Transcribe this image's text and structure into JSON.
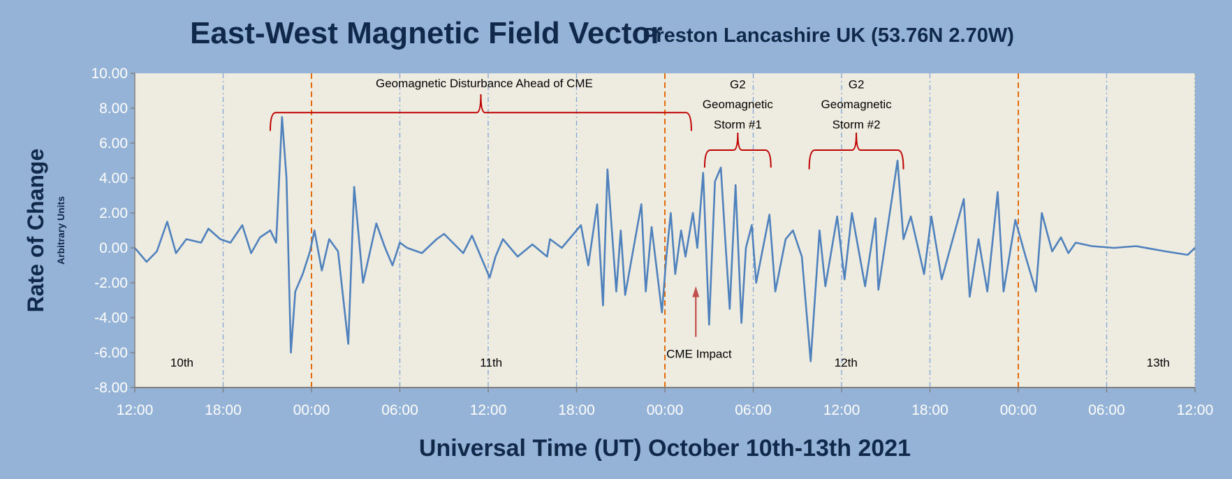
{
  "chart_data": {
    "type": "line",
    "title": "East-West Magnetic Field Vector",
    "subtitle": "Preston Lancashire UK (53.76N 2.70W)",
    "xlabel": "Universal Time (UT) October 10th-13th 2021",
    "ylabel": "Rate of Change",
    "ylabel_sub": "Arbitrary Units",
    "ylim": [
      -8,
      10
    ],
    "xlim_hours": [
      0,
      72
    ],
    "yticks": [
      "10.00",
      "8.00",
      "6.00",
      "4.00",
      "2.00",
      "0.00",
      "-2.00",
      "-4.00",
      "-6.00",
      "-8.00"
    ],
    "ytick_values": [
      10,
      8,
      6,
      4,
      2,
      0,
      -2,
      -4,
      -6,
      -8
    ],
    "xticks": [
      "12:00",
      "18:00",
      "00:00",
      "06:00",
      "12:00",
      "18:00",
      "00:00",
      "06:00",
      "12:00",
      "18:00",
      "00:00",
      "06:00",
      "12:00"
    ],
    "midnight_hours": [
      12,
      36,
      60
    ],
    "day_labels": [
      {
        "text": "10th",
        "hour": 3.2
      },
      {
        "text": "11th",
        "hour": 24.2
      },
      {
        "text": "12th",
        "hour": 48.3
      },
      {
        "text": "13th",
        "hour": 69.5
      }
    ],
    "annotations": {
      "disturbance": "Geomagnetic Disturbance Ahead of CME",
      "storm1": [
        "G2",
        "Geomagnetic",
        "Storm #1"
      ],
      "storm2": [
        "G2",
        "Geomagnetic",
        "Storm #2"
      ],
      "cme": "CME Impact"
    },
    "series": [
      {
        "name": "East-West rate of change",
        "color": "#4F81BD",
        "points": [
          [
            0,
            0
          ],
          [
            0.8,
            -0.8
          ],
          [
            1.5,
            -0.2
          ],
          [
            2.2,
            1.5
          ],
          [
            2.8,
            -0.3
          ],
          [
            3.5,
            0.5
          ],
          [
            4.5,
            0.3
          ],
          [
            5.0,
            1.1
          ],
          [
            5.8,
            0.5
          ],
          [
            6.5,
            0.3
          ],
          [
            7.3,
            1.3
          ],
          [
            7.9,
            -0.3
          ],
          [
            8.5,
            0.6
          ],
          [
            9.2,
            1.0
          ],
          [
            9.6,
            0.3
          ],
          [
            10.0,
            7.5
          ],
          [
            10.3,
            4
          ],
          [
            10.6,
            -6.0
          ],
          [
            10.9,
            -2.5
          ],
          [
            11.4,
            -1.5
          ],
          [
            11.9,
            -0.2
          ],
          [
            12.2,
            1.0
          ],
          [
            12.7,
            -1.3
          ],
          [
            13.2,
            0.5
          ],
          [
            13.8,
            -0.2
          ],
          [
            14.5,
            -5.5
          ],
          [
            14.9,
            3.5
          ],
          [
            15.5,
            -2.0
          ],
          [
            16.4,
            1.4
          ],
          [
            17.0,
            0
          ],
          [
            17.5,
            -1.0
          ],
          [
            18.0,
            0.3
          ],
          [
            18.5,
            0
          ],
          [
            19.5,
            -0.3
          ],
          [
            20.5,
            0.5
          ],
          [
            21.0,
            0.8
          ],
          [
            22.3,
            -0.3
          ],
          [
            22.9,
            0.7
          ],
          [
            24.1,
            -1.7
          ],
          [
            24.5,
            -0.5
          ],
          [
            25.0,
            0.5
          ],
          [
            26.0,
            -0.5
          ],
          [
            27.0,
            0.2
          ],
          [
            28.0,
            -0.5
          ],
          [
            28.2,
            0.5
          ],
          [
            29.0,
            0
          ],
          [
            30.3,
            1.3
          ],
          [
            30.8,
            -1.0
          ],
          [
            31.4,
            2.5
          ],
          [
            31.8,
            -3.3
          ],
          [
            32.1,
            4.5
          ],
          [
            32.7,
            -2.5
          ],
          [
            33.0,
            1.0
          ],
          [
            33.3,
            -2.7
          ],
          [
            34.4,
            2.5
          ],
          [
            34.7,
            -2.5
          ],
          [
            35.1,
            1.2
          ],
          [
            35.8,
            -3.7
          ],
          [
            36.1,
            -0.5
          ],
          [
            36.4,
            2.0
          ],
          [
            36.7,
            -1.5
          ],
          [
            37.1,
            1.0
          ],
          [
            37.4,
            -0.5
          ],
          [
            37.9,
            2.0
          ],
          [
            38.2,
            0
          ],
          [
            38.6,
            4.3
          ],
          [
            39.0,
            -4.4
          ],
          [
            39.4,
            3.8
          ],
          [
            39.8,
            4.6
          ],
          [
            40.1,
            0.5
          ],
          [
            40.4,
            -3.5
          ],
          [
            40.8,
            3.6
          ],
          [
            41.2,
            -4.3
          ],
          [
            41.5,
            0
          ],
          [
            41.9,
            1.3
          ],
          [
            42.2,
            -2.0
          ],
          [
            43.1,
            1.9
          ],
          [
            43.5,
            -2.5
          ],
          [
            44.2,
            0.5
          ],
          [
            44.7,
            1.0
          ],
          [
            45.3,
            -0.5
          ],
          [
            45.9,
            -6.5
          ],
          [
            46.5,
            1.0
          ],
          [
            46.9,
            -2.2
          ],
          [
            47.7,
            1.8
          ],
          [
            48.2,
            -1.8
          ],
          [
            48.7,
            2.0
          ],
          [
            49.6,
            -2.2
          ],
          [
            50.3,
            1.7
          ],
          [
            50.5,
            -2.4
          ],
          [
            51.8,
            5.0
          ],
          [
            52.2,
            0.5
          ],
          [
            52.7,
            1.8
          ],
          [
            53.2,
            0
          ],
          [
            53.6,
            -1.5
          ],
          [
            54.1,
            1.8
          ],
          [
            54.8,
            -1.8
          ],
          [
            56.3,
            2.8
          ],
          [
            56.7,
            -2.8
          ],
          [
            57.3,
            0.5
          ],
          [
            57.9,
            -2.5
          ],
          [
            58.6,
            3.2
          ],
          [
            59.0,
            -2.5
          ],
          [
            59.8,
            1.6
          ],
          [
            60.5,
            -0.5
          ],
          [
            61.2,
            -2.5
          ],
          [
            61.6,
            2.0
          ],
          [
            62.3,
            -0.2
          ],
          [
            62.9,
            0.6
          ],
          [
            63.4,
            -0.3
          ],
          [
            63.9,
            0.3
          ],
          [
            65.0,
            0.1
          ],
          [
            66.5,
            0.0
          ],
          [
            68.0,
            0.1
          ],
          [
            70.0,
            -0.2
          ],
          [
            71.5,
            -0.4
          ],
          [
            72,
            0
          ]
        ]
      }
    ],
    "colors": {
      "background": "#95B3D7",
      "plot": "#EEECE1",
      "line": "#4F81BD",
      "bracket": "#C00000",
      "midnight": "#E46C0A",
      "gridline": "#7FA3D6"
    }
  }
}
